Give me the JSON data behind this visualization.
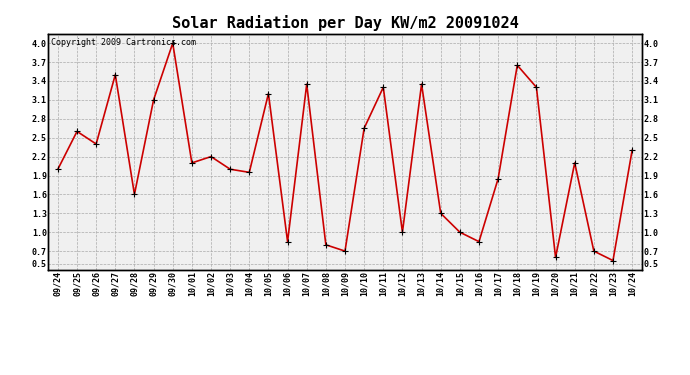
{
  "title": "Solar Radiation per Day KW/m2 20091024",
  "copyright": "Copyright 2009 Cartronics.com",
  "dates": [
    "09/24",
    "09/25",
    "09/26",
    "09/27",
    "09/28",
    "09/29",
    "09/30",
    "10/01",
    "10/02",
    "10/03",
    "10/04",
    "10/05",
    "10/06",
    "10/07",
    "10/08",
    "10/09",
    "10/10",
    "10/11",
    "10/12",
    "10/13",
    "10/14",
    "10/15",
    "10/16",
    "10/17",
    "10/18",
    "10/19",
    "10/20",
    "10/21",
    "10/22",
    "10/23",
    "10/24"
  ],
  "values": [
    2.0,
    2.6,
    2.4,
    3.5,
    1.6,
    3.1,
    4.0,
    2.1,
    2.2,
    2.0,
    1.95,
    3.2,
    0.85,
    3.35,
    0.8,
    0.7,
    2.65,
    3.3,
    1.0,
    3.35,
    1.3,
    1.0,
    0.85,
    1.85,
    3.65,
    3.3,
    0.6,
    2.1,
    0.7,
    0.55,
    2.3
  ],
  "line_color": "#cc0000",
  "marker": "+",
  "marker_color": "#000000",
  "marker_size": 4,
  "line_width": 1.2,
  "ylim": [
    0.4,
    4.15
  ],
  "yticks": [
    0.5,
    0.7,
    1.0,
    1.3,
    1.6,
    1.9,
    2.2,
    2.5,
    2.8,
    3.1,
    3.4,
    3.7,
    4.0
  ],
  "bg_color": "#ffffff",
  "plot_bg_color": "#f0f0f0",
  "grid_color": "#aaaaaa",
  "grid_style": "--",
  "title_fontsize": 11,
  "tick_fontsize": 6,
  "copyright_fontsize": 6
}
